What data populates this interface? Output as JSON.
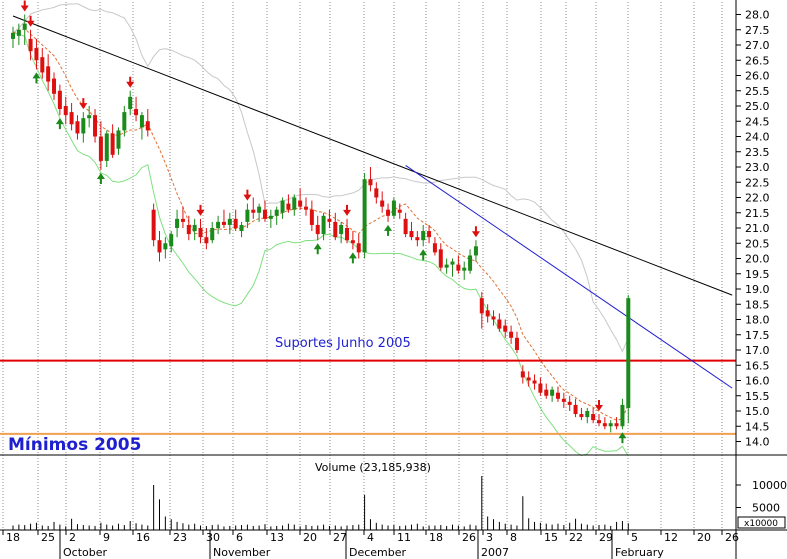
{
  "chart_data": {
    "type": "candlestick",
    "annotations": [
      {
        "text": "Suportes Junho 2005",
        "color": "#1f1fd0"
      },
      {
        "text": "Mínimos 2005",
        "color": "#1f1fd0"
      }
    ],
    "volume_title": "Volume (23,185,938)",
    "volume_unit_label": "x10000",
    "price_axis": {
      "range": [
        13.5,
        28.2
      ],
      "ticks": [
        "14.0",
        "14.5",
        "15.0",
        "15.5",
        "16.0",
        "16.5",
        "17.0",
        "17.5",
        "18.0",
        "18.5",
        "19.0",
        "19.5",
        "20.0",
        "20.5",
        "21.0",
        "21.5",
        "22.0",
        "22.5",
        "23.0",
        "23.5",
        "24.0",
        "24.5",
        "25.0",
        "25.5",
        "26.0",
        "26.5",
        "27.0",
        "27.5",
        "28.0"
      ]
    },
    "volume_axis": {
      "range": [
        0,
        12000
      ],
      "ticks": [
        "10000",
        "5000"
      ]
    },
    "x_day_labels": [
      "18",
      "25",
      "2",
      "9",
      "16",
      "23",
      "30",
      "6",
      "13",
      "20",
      "27",
      "4",
      "11",
      "18",
      "26",
      "3",
      "8",
      "15",
      "22",
      "29",
      "5",
      "12",
      "20",
      "26"
    ],
    "x_month_labels": [
      "October",
      "November",
      "December",
      "2007",
      "February"
    ],
    "horizontal_lines": [
      {
        "name": "Suportes Junho 2005",
        "value": 16.65,
        "color": "#e00000"
      },
      {
        "name": "Mínimos 2005",
        "value": 14.25,
        "color": "#f0a050"
      }
    ],
    "trend_lines": [
      {
        "color": "#000000",
        "from": {
          "bar": 0,
          "value": 27.95
        },
        "to": {
          "bar": 120,
          "value": 18.8
        }
      },
      {
        "color": "#1f1fd0",
        "from": {
          "bar": 67,
          "value": 23.05
        },
        "to": {
          "bar": 120,
          "value": 15.75
        }
      }
    ],
    "candles": [
      [
        27.2,
        27.6,
        26.9,
        27.4
      ],
      [
        27.3,
        27.7,
        27.0,
        27.5
      ],
      [
        27.5,
        28.0,
        27.0,
        27.7
      ],
      [
        27.2,
        27.5,
        26.5,
        26.8
      ],
      [
        26.9,
        27.2,
        26.2,
        26.5
      ],
      [
        26.6,
        26.9,
        25.9,
        26.1
      ],
      [
        26.3,
        26.7,
        25.5,
        25.8
      ],
      [
        25.9,
        26.1,
        25.2,
        25.4
      ],
      [
        25.5,
        25.7,
        24.7,
        24.9
      ],
      [
        25.0,
        25.3,
        24.4,
        24.7
      ],
      [
        24.8,
        25.1,
        24.2,
        24.4
      ],
      [
        24.5,
        24.7,
        23.9,
        24.1
      ],
      [
        24.1,
        24.8,
        23.8,
        24.6
      ],
      [
        24.6,
        25.0,
        24.3,
        24.7
      ],
      [
        24.7,
        24.9,
        23.8,
        24.0
      ],
      [
        24.0,
        24.5,
        22.9,
        23.2
      ],
      [
        23.2,
        24.2,
        23.0,
        24.1
      ],
      [
        24.1,
        24.4,
        23.3,
        23.4
      ],
      [
        23.6,
        24.3,
        23.4,
        24.2
      ],
      [
        24.2,
        25.0,
        24.0,
        24.8
      ],
      [
        24.9,
        25.5,
        24.7,
        25.3
      ],
      [
        24.9,
        25.3,
        24.5,
        24.7
      ],
      [
        24.3,
        24.8,
        23.9,
        24.7
      ],
      [
        24.5,
        24.9,
        24.0,
        24.2
      ],
      [
        21.6,
        21.8,
        20.4,
        20.6
      ],
      [
        20.6,
        20.9,
        19.9,
        20.2
      ],
      [
        20.3,
        20.7,
        20.0,
        20.5
      ],
      [
        20.4,
        20.9,
        20.2,
        20.8
      ],
      [
        21.0,
        21.6,
        20.7,
        21.3
      ],
      [
        21.3,
        21.7,
        21.0,
        21.2
      ],
      [
        21.1,
        21.4,
        20.6,
        20.8
      ],
      [
        20.9,
        21.3,
        20.6,
        21.1
      ],
      [
        21.0,
        21.3,
        20.5,
        20.7
      ],
      [
        20.7,
        21.0,
        20.3,
        20.5
      ],
      [
        20.6,
        21.2,
        20.5,
        21.0
      ],
      [
        21.0,
        21.4,
        20.8,
        21.2
      ],
      [
        21.2,
        21.6,
        21.0,
        21.1
      ],
      [
        21.1,
        21.5,
        20.8,
        21.3
      ],
      [
        21.3,
        21.6,
        20.9,
        21.0
      ],
      [
        20.9,
        21.2,
        20.7,
        21.1
      ],
      [
        21.2,
        21.8,
        21.0,
        21.6
      ],
      [
        21.6,
        22.0,
        21.3,
        21.5
      ],
      [
        21.5,
        21.8,
        21.2,
        21.7
      ],
      [
        21.6,
        21.9,
        21.2,
        21.3
      ],
      [
        21.3,
        21.6,
        21.0,
        21.4
      ],
      [
        21.4,
        21.7,
        21.1,
        21.6
      ],
      [
        21.5,
        22.0,
        21.3,
        21.9
      ],
      [
        21.8,
        22.1,
        21.5,
        21.6
      ],
      [
        21.6,
        22.1,
        21.4,
        22.0
      ],
      [
        21.9,
        22.3,
        21.6,
        21.7
      ],
      [
        21.7,
        22.0,
        21.4,
        21.6
      ],
      [
        21.6,
        21.9,
        20.9,
        21.1
      ],
      [
        21.1,
        21.4,
        20.6,
        20.8
      ],
      [
        20.8,
        21.5,
        20.6,
        21.4
      ],
      [
        21.3,
        21.6,
        21.0,
        21.2
      ],
      [
        21.2,
        21.5,
        20.6,
        20.7
      ],
      [
        20.8,
        21.2,
        20.5,
        21.1
      ],
      [
        21.0,
        21.3,
        20.5,
        20.6
      ],
      [
        20.6,
        20.9,
        20.3,
        20.5
      ],
      [
        20.5,
        20.8,
        20.0,
        20.2
      ],
      [
        20.2,
        22.8,
        20.0,
        22.6
      ],
      [
        22.6,
        23.0,
        22.2,
        22.4
      ],
      [
        22.3,
        22.5,
        21.8,
        22.0
      ],
      [
        21.9,
        22.2,
        21.5,
        21.7
      ],
      [
        21.6,
        21.8,
        21.2,
        21.4
      ],
      [
        21.4,
        22.0,
        21.3,
        21.9
      ],
      [
        21.6,
        21.8,
        21.3,
        21.5
      ],
      [
        21.3,
        21.5,
        20.7,
        20.8
      ],
      [
        20.9,
        21.2,
        20.6,
        20.7
      ],
      [
        20.7,
        20.9,
        20.4,
        20.6
      ],
      [
        20.6,
        21.1,
        20.4,
        20.9
      ],
      [
        20.9,
        21.1,
        20.5,
        20.7
      ],
      [
        20.5,
        20.7,
        20.1,
        20.2
      ],
      [
        20.3,
        20.5,
        19.6,
        19.7
      ],
      [
        19.7,
        20.0,
        19.5,
        19.8
      ],
      [
        19.8,
        20.0,
        19.4,
        19.9
      ],
      [
        19.8,
        20.1,
        19.5,
        19.6
      ],
      [
        19.6,
        19.9,
        19.3,
        19.7
      ],
      [
        19.6,
        20.3,
        19.5,
        20.1
      ],
      [
        20.1,
        20.6,
        19.9,
        20.4
      ],
      [
        18.7,
        18.9,
        17.7,
        18.2
      ],
      [
        18.3,
        18.5,
        17.9,
        18.1
      ],
      [
        18.1,
        18.3,
        17.8,
        18.0
      ],
      [
        18.0,
        18.2,
        17.6,
        17.7
      ],
      [
        17.8,
        18.0,
        17.4,
        17.6
      ],
      [
        17.6,
        17.8,
        17.2,
        17.4
      ],
      [
        17.4,
        17.6,
        16.9,
        17.0
      ],
      [
        16.3,
        16.5,
        15.9,
        16.1
      ],
      [
        16.1,
        16.3,
        15.8,
        16.0
      ],
      [
        16.0,
        16.2,
        15.7,
        15.9
      ],
      [
        15.9,
        16.1,
        15.5,
        15.6
      ],
      [
        15.7,
        15.9,
        15.4,
        15.5
      ],
      [
        15.5,
        15.8,
        15.3,
        15.7
      ],
      [
        15.6,
        15.8,
        15.3,
        15.4
      ],
      [
        15.4,
        15.6,
        15.1,
        15.3
      ],
      [
        15.3,
        15.5,
        15.0,
        15.2
      ],
      [
        15.2,
        15.4,
        14.8,
        14.9
      ],
      [
        14.9,
        15.1,
        14.7,
        14.8
      ],
      [
        14.8,
        15.1,
        14.6,
        15.0
      ],
      [
        14.9,
        15.1,
        14.6,
        14.7
      ],
      [
        14.7,
        14.9,
        14.5,
        14.6
      ],
      [
        14.6,
        14.8,
        14.4,
        14.5
      ],
      [
        14.5,
        14.7,
        14.3,
        14.6
      ],
      [
        14.6,
        14.8,
        14.4,
        14.5
      ],
      [
        14.5,
        15.4,
        14.4,
        15.2
      ],
      [
        15.1,
        18.8,
        14.6,
        18.7
      ]
    ],
    "signals": {
      "buy": [
        4,
        8,
        15,
        52,
        58,
        64,
        70,
        104
      ],
      "sell": [
        2,
        3,
        12,
        20,
        32,
        40,
        57,
        79,
        100
      ]
    },
    "volume": [
      1.0,
      1.2,
      1.1,
      1.4,
      1.6,
      1.0,
      0.9,
      1.8,
      1.2,
      0.8,
      2.5,
      1.3,
      1.1,
      1.0,
      0.9,
      1.6,
      1.2,
      1.0,
      1.4,
      1.1,
      2.0,
      1.5,
      1.2,
      1.0,
      10.0,
      6.8,
      3.0,
      2.4,
      1.8,
      1.5,
      1.2,
      1.4,
      1.0,
      0.9,
      1.1,
      1.2,
      0.8,
      0.9,
      1.0,
      1.1,
      1.2,
      0.9,
      1.0,
      1.3,
      0.8,
      0.9,
      1.0,
      1.4,
      1.2,
      0.8,
      1.1,
      0.9,
      1.0,
      1.2,
      0.9,
      1.0,
      0.8,
      1.0,
      1.1,
      1.2,
      7.8,
      2.4,
      1.6,
      1.2,
      1.0,
      1.1,
      0.9,
      1.0,
      1.2,
      1.4,
      0.8,
      1.0,
      1.0,
      1.1,
      0.9,
      1.2,
      1.0,
      0.8,
      1.2,
      1.0,
      12.0,
      3.0,
      2.4,
      1.8,
      1.4,
      1.2,
      1.0,
      7.5,
      2.6,
      1.8,
      1.6,
      1.4,
      1.2,
      1.4,
      1.1,
      1.6,
      2.5,
      1.4,
      1.2,
      1.0,
      1.1,
      1.2,
      0.9,
      1.8,
      2.0,
      1.5
    ],
    "colors": {
      "up": "#1a8a1a",
      "down": "#dd1010",
      "ma_short": "#e07030",
      "ma_long": "#7fe07f",
      "band": "#c8c8c8",
      "grid": "#8c8c8c"
    }
  }
}
